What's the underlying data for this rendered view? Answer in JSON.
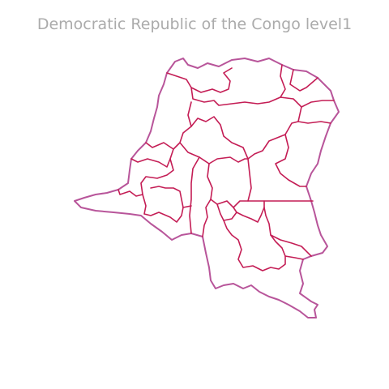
{
  "map": {
    "title": "Democratic Republic of the Congo level1",
    "colors": {
      "background": "#ffffff",
      "title": "#ababab",
      "country_outline": "#b8559a",
      "province_borders": "#c41d55"
    }
  }
}
